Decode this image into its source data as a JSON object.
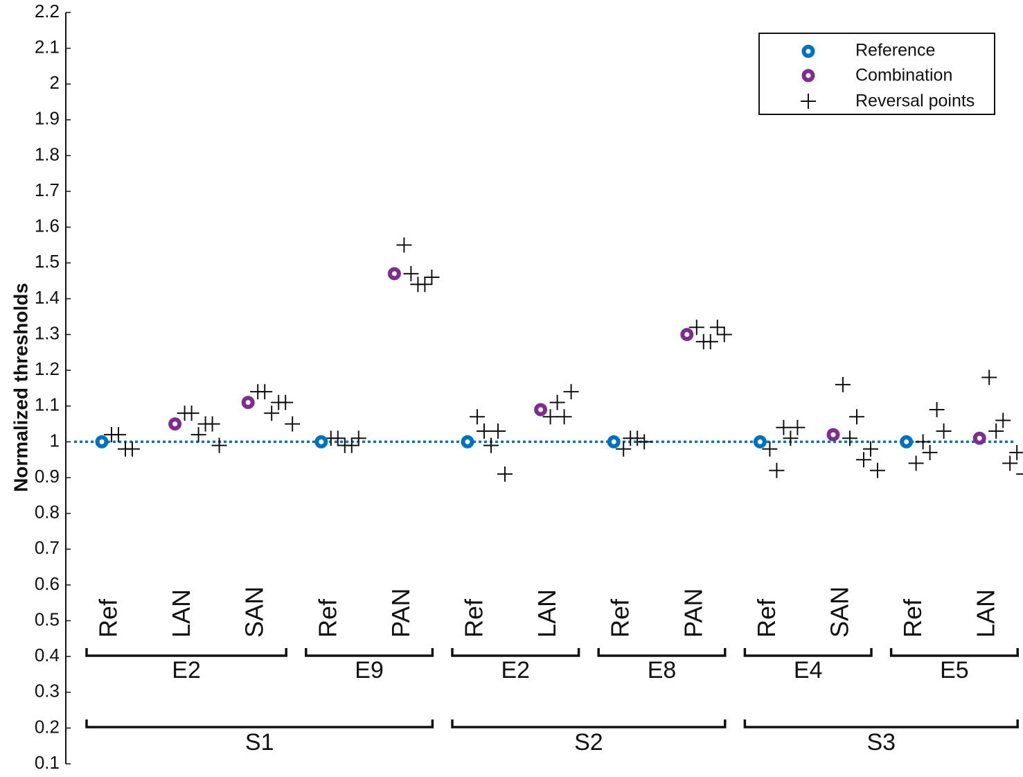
{
  "chart_data": {
    "type": "scatter",
    "title": "",
    "xlabel": "",
    "ylabel": "Normalized thresholds",
    "ylim": [
      0.1,
      2.2
    ],
    "yticks": [
      "0.1",
      "0.2",
      "0.3",
      "0.4",
      "0.5",
      "0.6",
      "0.7",
      "0.8",
      "0.9",
      "1",
      "1.1",
      "1.2",
      "1.3",
      "1.4",
      "1.5",
      "1.6",
      "1.7",
      "1.8",
      "1.9",
      "2",
      "2.1",
      "2.2"
    ],
    "reference_line": 1.0,
    "conditions": [
      {
        "label": "Ref",
        "subject": "S1",
        "electrode": "E2",
        "kind": "Reference",
        "threshold": 1.0,
        "reversals": [
          1.02,
          1.02,
          0.98,
          0.98
        ]
      },
      {
        "label": "LAN",
        "subject": "S1",
        "electrode": "E2",
        "kind": "Combination",
        "threshold": 1.05,
        "reversals": [
          1.08,
          1.08,
          1.02,
          1.05,
          1.05,
          0.99
        ]
      },
      {
        "label": "SAN",
        "subject": "S1",
        "electrode": "E2",
        "kind": "Combination",
        "threshold": 1.11,
        "reversals": [
          1.14,
          1.14,
          1.08,
          1.11,
          1.11,
          1.05
        ]
      },
      {
        "label": "Ref",
        "subject": "S1",
        "electrode": "E9",
        "kind": "Reference",
        "threshold": 1.0,
        "reversals": [
          1.01,
          1.01,
          0.99,
          0.99,
          1.01
        ]
      },
      {
        "label": "PAN",
        "subject": "S1",
        "electrode": "E9",
        "kind": "Combination",
        "threshold": 1.47,
        "reversals": [
          1.55,
          1.47,
          1.44,
          1.44,
          1.46
        ]
      },
      {
        "label": "Ref",
        "subject": "S2",
        "electrode": "E2",
        "kind": "Reference",
        "threshold": 1.0,
        "reversals": [
          1.07,
          1.03,
          0.99,
          1.03,
          0.91
        ]
      },
      {
        "label": "LAN",
        "subject": "S2",
        "electrode": "E2",
        "kind": "Combination",
        "threshold": 1.09,
        "reversals": [
          1.07,
          1.11,
          1.07,
          1.14
        ]
      },
      {
        "label": "Ref",
        "subject": "S2",
        "electrode": "E8",
        "kind": "Reference",
        "threshold": 1.0,
        "reversals": [
          0.98,
          1.01,
          1.01,
          1.0
        ]
      },
      {
        "label": "PAN",
        "subject": "S2",
        "electrode": "E8",
        "kind": "Combination",
        "threshold": 1.3,
        "reversals": [
          1.32,
          1.28,
          1.28,
          1.32,
          1.3
        ]
      },
      {
        "label": "Ref",
        "subject": "S3",
        "electrode": "E4",
        "kind": "Reference",
        "threshold": 1.0,
        "reversals": [
          0.98,
          0.92,
          1.04,
          1.01,
          1.04
        ]
      },
      {
        "label": "SAN",
        "subject": "S3",
        "electrode": "E4",
        "kind": "Combination",
        "threshold": 1.02,
        "reversals": [
          1.16,
          1.01,
          1.07,
          0.95,
          0.98,
          0.92
        ]
      },
      {
        "label": "Ref",
        "subject": "S3",
        "electrode": "E5",
        "kind": "Reference",
        "threshold": 1.0,
        "reversals": [
          0.94,
          1.0,
          0.97,
          1.09,
          1.03
        ]
      },
      {
        "label": "LAN",
        "subject": "S3",
        "electrode": "E5",
        "kind": "Combination",
        "threshold": 1.01,
        "reversals": [
          1.18,
          1.03,
          1.06,
          0.94,
          0.97,
          0.91
        ]
      }
    ],
    "electrode_groups": [
      {
        "label": "E2",
        "first": 0,
        "last": 2
      },
      {
        "label": "E9",
        "first": 3,
        "last": 4
      },
      {
        "label": "E2",
        "first": 5,
        "last": 6
      },
      {
        "label": "E8",
        "first": 7,
        "last": 8
      },
      {
        "label": "E4",
        "first": 9,
        "last": 10
      },
      {
        "label": "E5",
        "first": 11,
        "last": 12
      }
    ],
    "subject_groups": [
      {
        "label": "S1",
        "first": 0,
        "last": 4
      },
      {
        "label": "S2",
        "first": 5,
        "last": 8
      },
      {
        "label": "S3",
        "first": 9,
        "last": 12
      }
    ],
    "legend": {
      "position": "top-right",
      "entries": [
        {
          "label": "Reference",
          "marker": "circle",
          "color": "#0072BD"
        },
        {
          "label": "Combination",
          "marker": "circle",
          "color": "#7E2F8E"
        },
        {
          "label": "Reversal points",
          "marker": "plus",
          "color": "#111111"
        }
      ]
    },
    "colors": {
      "reference": "#0072BD",
      "combination": "#7E2F8E",
      "reversal": "#111111",
      "reference_line": "#0072BD"
    }
  }
}
